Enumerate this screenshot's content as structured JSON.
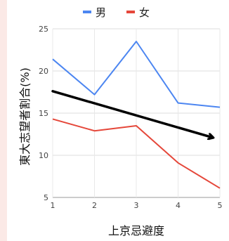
{
  "chart_data": {
    "type": "line",
    "title": "",
    "xlabel": "上京忌避度",
    "ylabel": "東大志望者割合(%)",
    "x": [
      1,
      2,
      3,
      4,
      5
    ],
    "xlim": [
      1,
      5
    ],
    "ylim": [
      5,
      25
    ],
    "yticks": [
      5,
      10,
      15,
      20,
      25
    ],
    "grid": true,
    "legend_position": "top",
    "series": [
      {
        "name": "男",
        "color": "#4c86f1",
        "values": [
          21.4,
          17.2,
          23.5,
          16.2,
          15.7
        ]
      },
      {
        "name": "女",
        "color": "#e5473a",
        "values": [
          14.3,
          12.9,
          13.5,
          9.1,
          6.1
        ]
      }
    ],
    "annotation": {
      "type": "trend-arrow",
      "color": "#000000",
      "from": [
        1,
        17.6
      ],
      "to": [
        5,
        12.1
      ]
    }
  }
}
